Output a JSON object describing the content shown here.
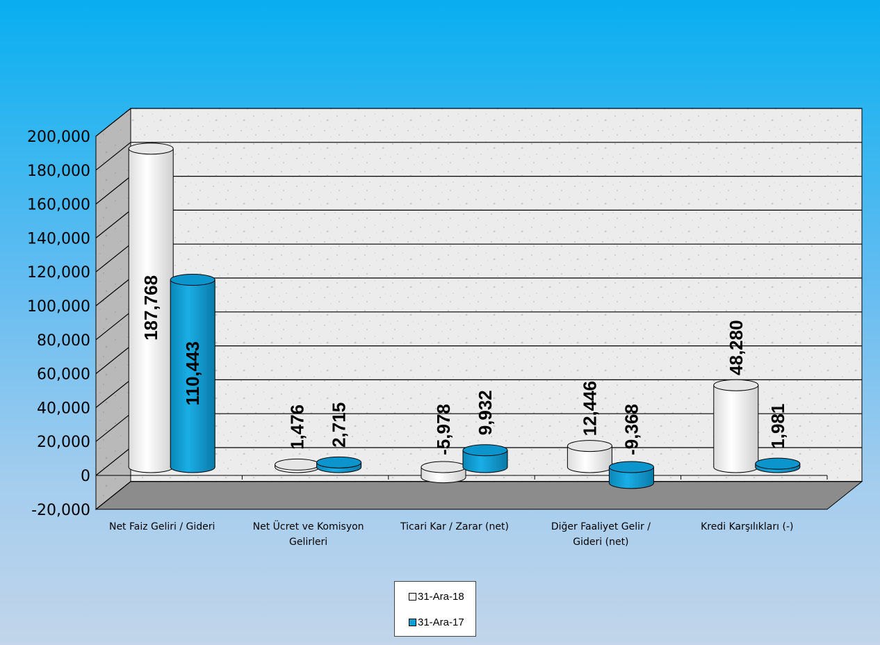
{
  "chart_data": {
    "type": "bar",
    "style": "3d-cylinder",
    "categories": [
      "Net Faiz Geliri / Gideri",
      "Net Ücret ve Komisyon Gelirleri",
      "Ticari Kar / Zarar (net)",
      "Diğer Faaliyet Gelir / Gideri (net)",
      "Kredi Karşılıkları (-)"
    ],
    "category_lines": [
      [
        "Net Faiz Geliri / Gideri"
      ],
      [
        "Net Ücret ve Komisyon",
        "Gelirleri"
      ],
      [
        "Ticari Kar / Zarar (net)"
      ],
      [
        "Diğer Faaliyet Gelir /",
        "Gideri (net)"
      ],
      [
        "Kredi Karşılıkları (-)"
      ]
    ],
    "series": [
      {
        "name": "31-Ara-18",
        "color": "#ffffff",
        "values": [
          187768,
          1476,
          -5978,
          12446,
          48280
        ],
        "labels": [
          "187,768",
          "1,476",
          "-5,978",
          "12,446",
          "48,280"
        ]
      },
      {
        "name": "31-Ara-17",
        "color": "#0d9fd6",
        "values": [
          110443,
          2715,
          9932,
          -9368,
          1981
        ],
        "labels": [
          "110,443",
          "2,715",
          "9,932",
          "-9,368",
          "1,981"
        ]
      }
    ],
    "yticks": [
      -20000,
      0,
      20000,
      40000,
      60000,
      80000,
      100000,
      120000,
      140000,
      160000,
      180000,
      200000
    ],
    "ytick_labels": [
      "-20,000",
      "0",
      "20,000",
      "40,000",
      "60,000",
      "80,000",
      "100,000",
      "120,000",
      "140,000",
      "160,000",
      "180,000",
      "200,000"
    ],
    "ylim": [
      -20000,
      200000
    ],
    "title": "",
    "xlabel": "",
    "ylabel": "",
    "grid": true,
    "legend_position": "bottom-center"
  }
}
